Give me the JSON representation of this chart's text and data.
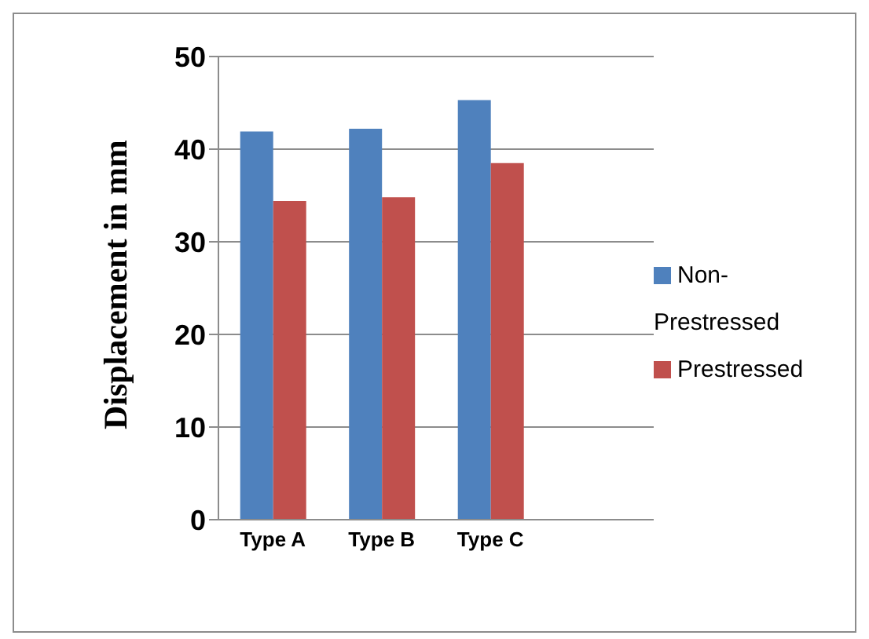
{
  "chart_data": {
    "type": "bar",
    "ylabel": "Displacement in mm",
    "categories": [
      "Type A",
      "Type B",
      "Type C",
      null
    ],
    "series": [
      {
        "name": "Non-Prestressed",
        "color": "#4f81bd",
        "values": [
          41.9,
          42.2,
          45.3,
          null
        ]
      },
      {
        "name": "Prestressed",
        "color": "#c0504d",
        "values": [
          34.4,
          34.8,
          38.5,
          null
        ]
      }
    ],
    "ylim": [
      0,
      50
    ],
    "yticks": [
      0,
      10,
      20,
      30,
      40,
      50
    ],
    "grid": "y",
    "legend": "right"
  }
}
